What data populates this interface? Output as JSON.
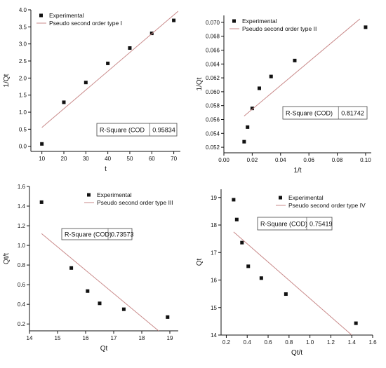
{
  "colors": {
    "fit_line": "#c98a8a",
    "marker": "#111111",
    "axis": "#111111",
    "box_border": "#444444"
  },
  "chart_data": [
    {
      "type": "scatter",
      "xlabel": "t",
      "ylabel": "1/Qt",
      "xlim": [
        5,
        73
      ],
      "ylim": [
        -0.15,
        4.0
      ],
      "xticks": [
        10,
        20,
        30,
        40,
        50,
        60,
        70
      ],
      "yticks": [
        0.0,
        0.5,
        1.0,
        1.5,
        2.0,
        2.5,
        3.0,
        3.5,
        4.0
      ],
      "tick_decimals_x": 0,
      "tick_decimals_y": 1,
      "legend_position": "top-left",
      "series": [
        {
          "name": "Experimental",
          "kind": "markers",
          "x": [
            10,
            20,
            30,
            40,
            50,
            60,
            70
          ],
          "y": [
            0.07,
            1.29,
            1.87,
            2.43,
            2.88,
            3.31,
            3.69
          ]
        },
        {
          "name": "Pseudo second order type I",
          "kind": "line",
          "x": [
            10,
            72
          ],
          "y": [
            0.55,
            3.96
          ]
        }
      ],
      "r_square_label": "R-Square (COD",
      "r_square_value": "0.95834"
    },
    {
      "type": "scatter",
      "xlabel": "1/t",
      "ylabel": "1/Qt",
      "xlim": [
        0.0,
        0.104
      ],
      "ylim": [
        0.0512,
        0.071
      ],
      "xticks": [
        0.0,
        0.02,
        0.04,
        0.06,
        0.08,
        0.1
      ],
      "yticks": [
        0.052,
        0.054,
        0.056,
        0.058,
        0.06,
        0.062,
        0.064,
        0.066,
        0.068,
        0.07
      ],
      "tick_decimals_x": 2,
      "tick_decimals_y": 3,
      "legend_position": "top-left",
      "series": [
        {
          "name": "Experimental",
          "kind": "markers",
          "x": [
            0.0143,
            0.0167,
            0.02,
            0.025,
            0.0333,
            0.05,
            0.1
          ],
          "y": [
            0.0528,
            0.0549,
            0.0576,
            0.0605,
            0.0622,
            0.0645,
            0.0693
          ]
        },
        {
          "name": "Pseudo second order type II",
          "kind": "line",
          "x": [
            0.0143,
            0.096
          ],
          "y": [
            0.0565,
            0.0705
          ]
        }
      ],
      "r_square_label": "R-Square (COD)",
      "r_square_value": "0.81742"
    },
    {
      "type": "scatter",
      "xlabel": "Qt",
      "ylabel": "Qt/t",
      "xlim": [
        14.0,
        19.3
      ],
      "ylim": [
        0.13,
        1.6
      ],
      "xticks": [
        14,
        15,
        16,
        17,
        18,
        19
      ],
      "yticks": [
        0.2,
        0.4,
        0.6,
        0.8,
        1.0,
        1.2,
        1.4,
        1.6
      ],
      "tick_decimals_x": 0,
      "tick_decimals_y": 1,
      "legend_position": "top-right",
      "series": [
        {
          "name": "Experimental",
          "kind": "markers",
          "x": [
            14.43,
            15.49,
            16.07,
            16.5,
            17.36,
            18.92
          ],
          "y": [
            1.44,
            0.77,
            0.535,
            0.41,
            0.35,
            0.27
          ]
        },
        {
          "name": "Pseudo second order type III",
          "kind": "line",
          "x": [
            14.43,
            18.6
          ],
          "y": [
            1.12,
            0.13
          ]
        }
      ],
      "r_square_label": "R-Square (COD)",
      "r_square_value": "0.73573"
    },
    {
      "type": "scatter",
      "xlabel": "Qt/t",
      "ylabel": "Qt",
      "xlim": [
        0.15,
        1.6
      ],
      "ylim": [
        14.0,
        19.3
      ],
      "xticks": [
        0.2,
        0.4,
        0.6,
        0.8,
        1.0,
        1.2,
        1.4,
        1.6
      ],
      "yticks": [
        14,
        15,
        16,
        17,
        18,
        19
      ],
      "tick_decimals_x": 1,
      "tick_decimals_y": 0,
      "legend_position": "top-right",
      "series": [
        {
          "name": "Experimental",
          "kind": "markers",
          "x": [
            0.27,
            0.3,
            0.35,
            0.41,
            0.535,
            0.77,
            1.44
          ],
          "y": [
            18.92,
            18.2,
            17.36,
            16.5,
            16.07,
            15.49,
            14.43
          ]
        },
        {
          "name": "Pseudo second order type IV",
          "kind": "line",
          "x": [
            0.27,
            1.4
          ],
          "y": [
            17.75,
            14.0
          ]
        }
      ],
      "r_square_label": "R-Square (COD)",
      "r_square_value": "0.75419"
    }
  ]
}
